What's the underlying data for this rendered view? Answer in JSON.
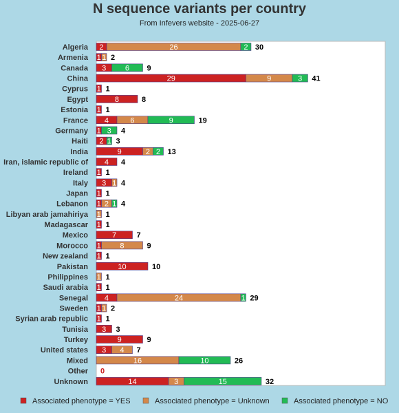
{
  "chart_data": {
    "type": "bar",
    "stacked": true,
    "orientation": "horizontal",
    "title": "N sequence variants per country",
    "subtitle": "From Infevers website - 2025-06-27",
    "categories": [
      "Algeria",
      "Armenia",
      "Canada",
      "China",
      "Cyprus",
      "Egypt",
      "Estonia",
      "France",
      "Germany",
      "Haiti",
      "India",
      "Iran, islamic republic of",
      "Ireland",
      "Italy",
      "Japan",
      "Lebanon",
      "Libyan arab jamahiriya",
      "Madagascar",
      "Mexico",
      "Morocco",
      "New zealand",
      "Pakistan",
      "Philippines",
      "Saudi arabia",
      "Senegal",
      "Sweden",
      "Syrian arab republic",
      "Tunisia",
      "Turkey",
      "United states",
      "Mixed",
      "Other",
      "Unknown"
    ],
    "series": [
      {
        "name": "Associated phenotype = YES",
        "color": "#cc2222",
        "values": [
          2,
          1,
          3,
          29,
          1,
          8,
          1,
          4,
          1,
          2,
          9,
          4,
          1,
          3,
          1,
          1,
          0,
          1,
          7,
          1,
          1,
          10,
          0,
          1,
          4,
          1,
          1,
          3,
          9,
          3,
          0,
          0,
          14
        ]
      },
      {
        "name": "Associated phenotype = Unknown",
        "color": "#d4884a",
        "values": [
          26,
          1,
          0,
          9,
          0,
          0,
          0,
          6,
          0,
          0,
          2,
          0,
          0,
          1,
          0,
          2,
          1,
          0,
          0,
          8,
          0,
          0,
          1,
          0,
          24,
          1,
          0,
          0,
          0,
          4,
          16,
          0,
          3
        ]
      },
      {
        "name": "Associated phenotype = NO",
        "color": "#22bb55",
        "values": [
          2,
          0,
          6,
          3,
          0,
          0,
          0,
          9,
          3,
          1,
          2,
          0,
          0,
          0,
          0,
          1,
          0,
          0,
          0,
          0,
          0,
          0,
          0,
          0,
          1,
          0,
          0,
          0,
          0,
          0,
          10,
          0,
          15
        ]
      }
    ],
    "totals": [
      30,
      2,
      9,
      41,
      1,
      8,
      1,
      19,
      4,
      3,
      13,
      4,
      1,
      4,
      1,
      4,
      1,
      1,
      7,
      9,
      1,
      10,
      1,
      1,
      29,
      2,
      1,
      3,
      9,
      7,
      26,
      0,
      32
    ],
    "xlim": [
      0,
      50
    ],
    "legend_position": "bottom"
  }
}
